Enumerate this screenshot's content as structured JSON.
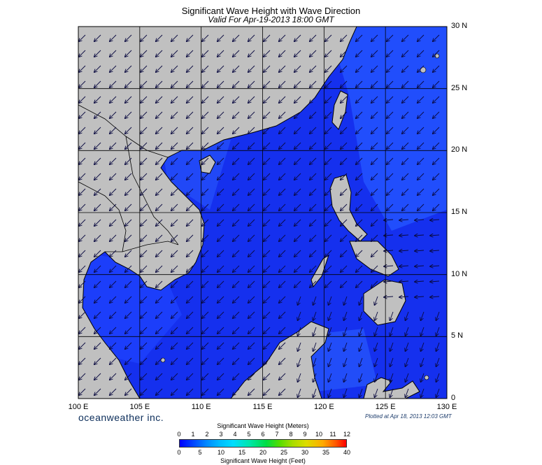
{
  "title": "Significant Wave Height with Wave Direction",
  "subtitle": "Valid For Apr-19-2013 18:00 GMT",
  "brand": "oceanweather inc.",
  "plotted": "Plotted at Apr 18, 2013 12:03 GMT",
  "lon_labels": [
    "100 E",
    "105 E",
    "110 E",
    "115 E",
    "120 E",
    "125 E",
    "130 E"
  ],
  "lat_labels": [
    "30 N",
    "25 N",
    "20 N",
    "15 N",
    "10 N",
    "5 N",
    "0"
  ],
  "colorbar": {
    "meters_title": "Significant Wave Height (Meters)",
    "feet_title": "Significant Wave Height (Feet)",
    "meters_ticks": [
      "0",
      "1",
      "2",
      "3",
      "4",
      "5",
      "6",
      "7",
      "8",
      "9",
      "10",
      "11",
      "12"
    ],
    "feet_ticks": [
      "0",
      "5",
      "10",
      "15",
      "20",
      "25",
      "30",
      "35",
      "40"
    ]
  },
  "colors": {
    "land": "#c0c0c0",
    "sea_deep": "#1a33ee",
    "sea_light": "#2d5bff",
    "grid": "#000000"
  }
}
